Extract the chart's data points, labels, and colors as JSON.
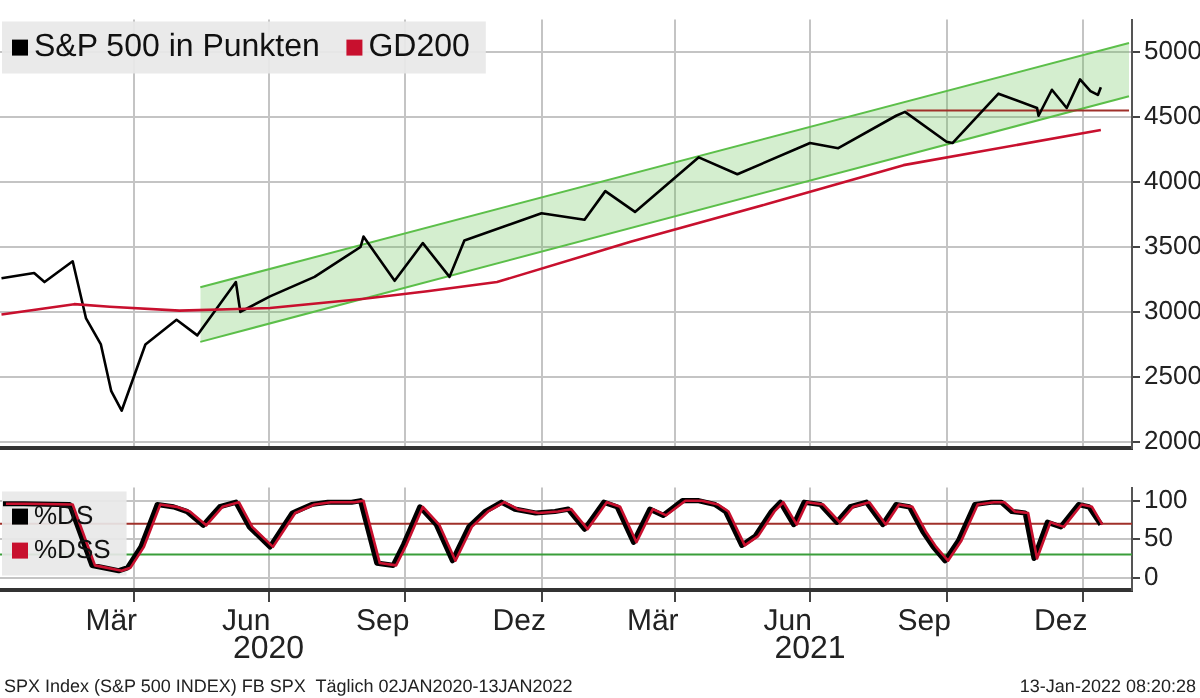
{
  "chart_data": [
    {
      "type": "line",
      "legend": "top left",
      "grid": true,
      "tick_labels": "y",
      "xlim": [
        "2020-01-01",
        "2022-02-02"
      ],
      "ylim": [
        1950,
        5250
      ],
      "yticks": [
        2000,
        2500,
        3000,
        3500,
        4000,
        4500,
        5000
      ],
      "xticks": [
        {
          "value": "2020-03-31",
          "label": null
        },
        {
          "value": "2020-06-30",
          "label": null
        },
        {
          "value": "2020-09-30",
          "label": null
        },
        {
          "value": "2020-12-31",
          "label": null
        },
        {
          "value": "2021-03-31",
          "label": null
        },
        {
          "value": "2021-06-30",
          "label": null
        },
        {
          "value": "2021-09-30",
          "label": null
        },
        {
          "value": "2021-12-31",
          "label": null
        }
      ],
      "series": [
        {
          "type": "line",
          "color": "#5cbf4a",
          "x": [
            "2020-05-15",
            "2022-01-31"
          ],
          "values": [
            2770,
            4660
          ]
        },
        {
          "type": "area",
          "color": "#5cbf4a",
          "x": [
            "2020-05-15",
            "2022-01-31"
          ],
          "values": [
            3190,
            5070
          ]
        },
        {
          "type": "line",
          "color": "#a0302a",
          "x": [
            "2021-09-03",
            "2022-01-31"
          ],
          "values": [
            4550,
            4550
          ]
        },
        {
          "name": "S&P 500 in Punkten",
          "color": "#000000",
          "x": [
            "2020-01-02",
            "2020-01-24",
            "2020-01-31",
            "2020-02-19",
            "2020-02-28",
            "2020-03-09",
            "2020-03-16",
            "2020-03-23",
            "2020-04-08",
            "2020-04-29",
            "2020-05-13",
            "2020-06-08",
            "2020-06-11",
            "2020-07-01",
            "2020-07-31",
            "2020-08-31",
            "2020-09-02",
            "2020-09-23",
            "2020-10-12",
            "2020-10-30",
            "2020-11-09",
            "2020-12-31",
            "2021-01-29",
            "2021-02-12",
            "2021-03-04",
            "2021-04-16",
            "2021-05-12",
            "2021-06-30",
            "2021-07-19",
            "2021-08-27",
            "2021-09-02",
            "2021-09-30",
            "2021-10-04",
            "2021-11-04",
            "2021-11-30",
            "2021-12-01",
            "2021-12-10",
            "2021-12-20",
            "2021-12-29",
            "2022-01-05",
            "2022-01-10",
            "2022-01-12"
          ],
          "values": [
            3260,
            3300,
            3230,
            3390,
            2950,
            2750,
            2390,
            2240,
            2750,
            2940,
            2820,
            3230,
            3000,
            3120,
            3270,
            3500,
            3580,
            3240,
            3530,
            3270,
            3550,
            3760,
            3710,
            3930,
            3770,
            4190,
            4060,
            4300,
            4260,
            4510,
            4540,
            4310,
            4300,
            4680,
            4570,
            4510,
            4710,
            4570,
            4790,
            4700,
            4670,
            4730
          ]
        },
        {
          "name": "GD200",
          "color": "#c8102e",
          "x": [
            "2020-01-02",
            "2020-02-20",
            "2020-03-15",
            "2020-05-01",
            "2020-07-01",
            "2020-09-01",
            "2020-10-15",
            "2020-12-01",
            "2021-03-01",
            "2021-06-01",
            "2021-09-01",
            "2022-01-12"
          ],
          "values": [
            2980,
            3060,
            3040,
            3010,
            3030,
            3100,
            3160,
            3230,
            3540,
            3830,
            4130,
            4400
          ]
        }
      ]
    },
    {
      "type": "line",
      "legend": "left",
      "grid": true,
      "xlim": [
        "2020-01-01",
        "2022-02-02"
      ],
      "ylim": [
        -16,
        117
      ],
      "yticks": [
        0,
        50,
        100
      ],
      "xticks": [
        {
          "value": "2020-03-16",
          "label": "Mär"
        },
        {
          "value": "2020-03-31",
          "label": null
        },
        {
          "value": "2020-06-15",
          "label": "Jun"
        },
        {
          "value": "2020-06-30",
          "label": null
        },
        {
          "value": "2020-09-15",
          "label": "Sep"
        },
        {
          "value": "2020-09-30",
          "label": null
        },
        {
          "value": "2020-12-16",
          "label": "Dez"
        },
        {
          "value": "2020-12-31",
          "label": null
        },
        {
          "value": "2021-03-16",
          "label": "Mär"
        },
        {
          "value": "2021-03-31",
          "label": null
        },
        {
          "value": "2021-06-15",
          "label": "Jun"
        },
        {
          "value": "2021-06-30",
          "label": null
        },
        {
          "value": "2021-09-15",
          "label": "Sep"
        },
        {
          "value": "2021-09-30",
          "label": null
        },
        {
          "value": "2021-12-16",
          "label": "Dez"
        },
        {
          "value": "2021-12-31",
          "label": null
        }
      ],
      "ref_lines": [
        {
          "axis": "y",
          "value": 70,
          "color": "#a0302a"
        },
        {
          "axis": "y",
          "value": 30,
          "color": "#3a9e3a"
        }
      ],
      "annotations": [
        "2020",
        "2021",
        "SPX Index (S&P 500 INDEX) FB SPX  Täglich 02JAN2020-13JAN2022",
        "13-Jan-2022 08:20:28"
      ],
      "x": [
        "2020-01-03",
        "2020-01-17",
        "2020-02-17",
        "2020-02-28",
        "2020-03-03",
        "2020-03-21",
        "2020-03-27",
        "2020-04-05",
        "2020-04-16",
        "2020-04-27",
        "2020-05-06",
        "2020-05-17",
        "2020-05-28",
        "2020-06-08",
        "2020-06-17",
        "2020-07-01",
        "2020-07-16",
        "2020-07-29",
        "2020-08-09",
        "2020-08-25",
        "2020-08-31",
        "2020-09-11",
        "2020-09-22",
        "2020-09-29",
        "2020-10-10",
        "2020-10-21",
        "2020-11-01",
        "2020-11-12",
        "2020-11-23",
        "2020-12-04",
        "2020-12-13",
        "2020-12-27",
        "2021-01-09",
        "2021-01-18",
        "2021-01-29",
        "2021-02-11",
        "2021-02-20",
        "2021-03-03",
        "2021-03-14",
        "2021-03-23",
        "2021-04-05",
        "2021-04-16",
        "2021-04-27",
        "2021-05-04",
        "2021-05-15",
        "2021-05-24",
        "2021-06-04",
        "2021-06-10",
        "2021-06-19",
        "2021-06-26",
        "2021-07-07",
        "2021-07-18",
        "2021-07-27",
        "2021-08-07",
        "2021-08-18",
        "2021-08-27",
        "2021-09-05",
        "2021-09-14",
        "2021-09-21",
        "2021-09-29",
        "2021-10-08",
        "2021-10-19",
        "2021-10-30",
        "2021-11-06",
        "2021-11-13",
        "2021-11-22",
        "2021-11-28",
        "2021-12-07",
        "2021-12-16",
        "2021-12-28",
        "2022-01-04",
        "2022-01-12"
      ],
      "series": [
        {
          "name": "%DS",
          "color": "#000000",
          "values": [
            96,
            96,
            95,
            37,
            16,
            9,
            13,
            40,
            95,
            92,
            86,
            68,
            92,
            98,
            66,
            40,
            84,
            95,
            98,
            98,
            100,
            19,
            16,
            43,
            92,
            69,
            22,
            66,
            86,
            98,
            89,
            84,
            86,
            89,
            63,
            98,
            92,
            46,
            89,
            81,
            100,
            100,
            95,
            86,
            42,
            54,
            86,
            98,
            69,
            98,
            95,
            72,
            92,
            98,
            69,
            95,
            92,
            60,
            40,
            22,
            48,
            95,
            98,
            98,
            86,
            84,
            25,
            72,
            66,
            95,
            92,
            69
          ]
        },
        {
          "name": "%DSS",
          "color": "#c8102e",
          "x": [
            "2020-01-05",
            "2020-01-19",
            "2020-02-19",
            "2020-03-01",
            "2020-03-05",
            "2020-03-23",
            "2020-03-29",
            "2020-04-07",
            "2020-04-18",
            "2020-04-29",
            "2020-05-08",
            "2020-05-19",
            "2020-05-30",
            "2020-06-10",
            "2020-06-19",
            "2020-07-03",
            "2020-07-18",
            "2020-07-31",
            "2020-08-11",
            "2020-08-27",
            "2020-09-02",
            "2020-09-13",
            "2020-09-24",
            "2020-10-01",
            "2020-10-12",
            "2020-10-23",
            "2020-11-03",
            "2020-11-14",
            "2020-11-25",
            "2020-12-06",
            "2020-12-15",
            "2020-12-29",
            "2021-01-11",
            "2021-01-20",
            "2021-01-31",
            "2021-02-13",
            "2021-02-22",
            "2021-03-05",
            "2021-03-16",
            "2021-03-25",
            "2021-04-07",
            "2021-04-18",
            "2021-04-29",
            "2021-05-06",
            "2021-05-17",
            "2021-05-26",
            "2021-06-06",
            "2021-06-12",
            "2021-06-21",
            "2021-06-28",
            "2021-07-09",
            "2021-07-20",
            "2021-07-29",
            "2021-08-09",
            "2021-08-20",
            "2021-08-29",
            "2021-09-07",
            "2021-09-16",
            "2021-09-23",
            "2021-10-01",
            "2021-10-10",
            "2021-10-21",
            "2021-11-01",
            "2021-11-08",
            "2021-11-15",
            "2021-11-24",
            "2021-11-30",
            "2021-12-09",
            "2021-12-18",
            "2021-12-30",
            "2022-01-06",
            "2022-01-13"
          ],
          "values": [
            96,
            96,
            95,
            37,
            16,
            9,
            13,
            40,
            95,
            92,
            86,
            68,
            92,
            98,
            66,
            40,
            84,
            95,
            98,
            98,
            100,
            19,
            16,
            43,
            92,
            69,
            22,
            66,
            86,
            98,
            89,
            84,
            86,
            89,
            63,
            98,
            92,
            46,
            89,
            81,
            100,
            100,
            95,
            86,
            42,
            54,
            86,
            98,
            69,
            98,
            95,
            72,
            92,
            98,
            69,
            95,
            92,
            60,
            40,
            22,
            48,
            95,
            98,
            98,
            86,
            84,
            25,
            72,
            66,
            95,
            92,
            69
          ]
        }
      ]
    }
  ]
}
